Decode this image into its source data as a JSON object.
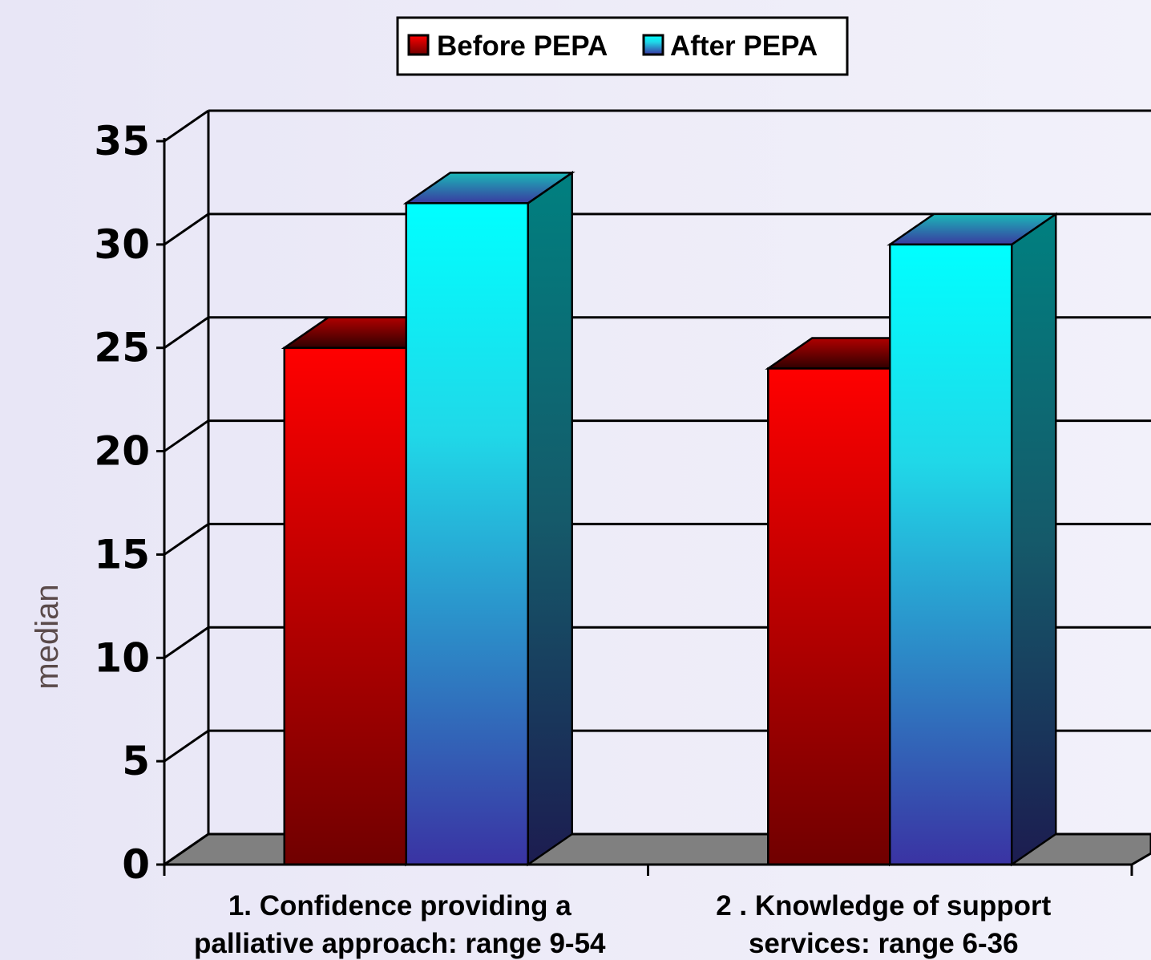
{
  "chart_data": {
    "type": "bar",
    "ylabel": "median",
    "ylim": [
      0,
      35
    ],
    "yticks": [
      "0",
      "5",
      "10",
      "15",
      "20",
      "25",
      "30",
      "35"
    ],
    "grid": true,
    "legend_position": "top",
    "categories": [
      [
        "1. Confidence providing a",
        "palliative approach: range 9-54"
      ],
      [
        "2 . Knowledge of support",
        "services: range 6-36"
      ]
    ],
    "series": [
      {
        "name": "Before PEPA",
        "values": [
          25,
          24
        ],
        "color": "#ff0000"
      },
      {
        "name": "After PEPA",
        "values": [
          32,
          30
        ],
        "color": "#00ffff"
      }
    ]
  }
}
